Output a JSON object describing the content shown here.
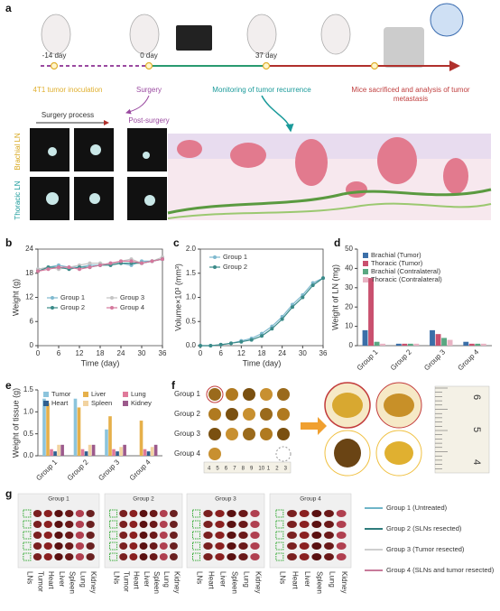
{
  "panel_labels": [
    "a",
    "b",
    "c",
    "d",
    "e",
    "f",
    "g"
  ],
  "panel_a": {
    "days": [
      "-14 day",
      "0 day",
      "37 day"
    ],
    "steps": [
      "4T1 tumor inoculation",
      "Surgery",
      "Monitoring of tumor recurrence"
    ],
    "final_step": [
      "Mice sacrificed and analysis of tumor",
      "metastasis"
    ],
    "surgery_process": "Surgery process",
    "post_surgery": "Post-surgery",
    "rows": [
      "Brachial LN",
      "Thoracic LN"
    ]
  },
  "chart_data": [
    {
      "type": "line",
      "ylabel": "Weight (g)",
      "xlabel": "Time (day)",
      "x": [
        0,
        3,
        6,
        9,
        12,
        15,
        18,
        21,
        24,
        27,
        30,
        33,
        36
      ],
      "xlim": [
        0,
        36
      ],
      "xticks": [
        0,
        6,
        12,
        18,
        24,
        30,
        36
      ],
      "ylim": [
        0,
        24
      ],
      "yticks": [
        0,
        6,
        12,
        18,
        24
      ],
      "series": [
        {
          "name": "Group 1",
          "color": "#7fb9cf",
          "values": [
            19,
            19.5,
            20,
            19.5,
            19.5,
            20,
            20,
            20.5,
            20.5,
            20,
            21,
            21,
            21.5
          ]
        },
        {
          "name": "Group 3",
          "color": "#c4c4c4",
          "values": [
            19,
            19.5,
            19,
            19.5,
            20,
            20.5,
            20.5,
            20,
            21,
            21.5,
            20.5,
            21,
            22
          ]
        },
        {
          "name": "Group 2",
          "color": "#3a8a88",
          "values": [
            18.5,
            19.5,
            19.5,
            19,
            19.5,
            19.5,
            20,
            20,
            20.5,
            20.5,
            20.5,
            21,
            21.5
          ]
        },
        {
          "name": "Group 4",
          "color": "#d4789c",
          "values": [
            18.5,
            19,
            19.5,
            19.5,
            19,
            19.5,
            20,
            20.5,
            21,
            21,
            20.5,
            21,
            21.5
          ]
        }
      ]
    },
    {
      "type": "line",
      "ylabel": "Volume×10³ (mm³)",
      "xlabel": "Time (day)",
      "x": [
        0,
        3,
        6,
        9,
        12,
        15,
        18,
        21,
        24,
        27,
        30,
        33,
        36
      ],
      "xlim": [
        0,
        36
      ],
      "xticks": [
        0,
        6,
        12,
        18,
        24,
        30,
        36
      ],
      "ylim": [
        0,
        2
      ],
      "yticks": [
        {
          "value": 0,
          "label": "0.0"
        },
        {
          "value": 0.5,
          "label": "0.5"
        },
        {
          "value": 1,
          "label": "1.0"
        },
        {
          "value": 1.5,
          "label": "1.5"
        },
        {
          "value": 2,
          "label": "2.0"
        }
      ],
      "series": [
        {
          "name": "Group 1",
          "color": "#7fb9cf",
          "values": [
            0,
            0,
            0.02,
            0.05,
            0.1,
            0.15,
            0.25,
            0.4,
            0.6,
            0.85,
            1.05,
            1.3,
            1.4
          ]
        },
        {
          "name": "Group 2",
          "color": "#3a8a88",
          "values": [
            0,
            0,
            0.02,
            0.05,
            0.08,
            0.12,
            0.2,
            0.35,
            0.55,
            0.8,
            1,
            1.25,
            1.4
          ]
        }
      ]
    },
    {
      "type": "bar",
      "ylabel": "Weight of LN (mg)",
      "categories": [
        "Group 1",
        "Group 2",
        "Group 3",
        "Group 4"
      ],
      "ylim": [
        0,
        50
      ],
      "yticks": [
        0,
        10,
        20,
        30,
        40,
        50
      ],
      "series": [
        {
          "name": "Brachial (Tumor)",
          "color": "#3b6fa8",
          "values": [
            8,
            1,
            8,
            2
          ]
        },
        {
          "name": "Thoracic (Tumor)",
          "color": "#c9506e",
          "values": [
            35,
            1,
            6,
            1
          ]
        },
        {
          "name": "Brachial (Contralateral)",
          "color": "#5aa882",
          "values": [
            2,
            1,
            4,
            1
          ]
        },
        {
          "name": "Thoracic (Contralateral)",
          "color": "#e8b4c4",
          "values": [
            1,
            1,
            3,
            1
          ]
        }
      ]
    },
    {
      "type": "bar",
      "ylabel": "Weight of tissue (g)",
      "categories": [
        "Group 1",
        "Group 2",
        "Group 3",
        "Group 4"
      ],
      "ylim": [
        0,
        1.5
      ],
      "yticks": [
        {
          "value": 0,
          "label": "0.0"
        },
        {
          "value": 0.5,
          "label": "0.5"
        },
        {
          "value": 1,
          "label": "1.0"
        },
        {
          "value": 1.5,
          "label": "1.5"
        }
      ],
      "series": [
        {
          "name": "Tumor",
          "color": "#8cc4dc",
          "values": [
            1.3,
            1.3,
            0.6,
            0
          ]
        },
        {
          "name": "Liver",
          "color": "#e6b04a",
          "values": [
            1.2,
            1.1,
            0.9,
            0.8
          ]
        },
        {
          "name": "Lung",
          "color": "#e07a9a",
          "values": [
            0.15,
            0.15,
            0.15,
            0.15
          ]
        },
        {
          "name": "Heart",
          "color": "#2f5f8f",
          "values": [
            0.1,
            0.1,
            0.1,
            0.1
          ]
        },
        {
          "name": "Spleen",
          "color": "#f2d3a0",
          "values": [
            0.25,
            0.25,
            0.2,
            0.2
          ]
        },
        {
          "name": "Kidney",
          "color": "#9c5a8c",
          "values": [
            0.25,
            0.25,
            0.25,
            0.25
          ]
        }
      ]
    }
  ],
  "panel_f": {
    "groups": [
      "Group 1",
      "Group 2",
      "Group 3",
      "Group 4"
    ],
    "ruler": [
      "4",
      "5",
      "6",
      "7",
      "8",
      "9",
      "10",
      "1",
      "2",
      "3"
    ],
    "ruler_right": [
      "6",
      "5",
      "4"
    ]
  },
  "panel_g": {
    "groups": [
      "Group 1",
      "Group 2",
      "Group 3",
      "Group 4"
    ],
    "organs": [
      [
        "LNs",
        "Tumor",
        "Heart",
        "Liver",
        "Spleen",
        "Lung",
        "Kidney"
      ],
      [
        "LNs",
        "Tumor",
        "Heart",
        "Liver",
        "Spleen",
        "Lung",
        "Kidney"
      ],
      [
        "LNs",
        "Heart",
        "Liver",
        "Spleen",
        "Lung",
        "Kidney"
      ],
      [
        "LNs",
        "Heart",
        "Liver",
        "Spleen",
        "Lung",
        "Kidney"
      ]
    ],
    "legend": [
      {
        "name": "Group 1 (Untreated)",
        "color": "#6fb5c8"
      },
      {
        "name": "Group 2 (SLNs resected)",
        "color": "#2e7c7c"
      },
      {
        "name": "Group 3 (Tumor resected)",
        "color": "#cfcfcf"
      },
      {
        "name": "Group 4 (SLNs and tumor resected)",
        "color": "#c87a9a"
      }
    ]
  }
}
